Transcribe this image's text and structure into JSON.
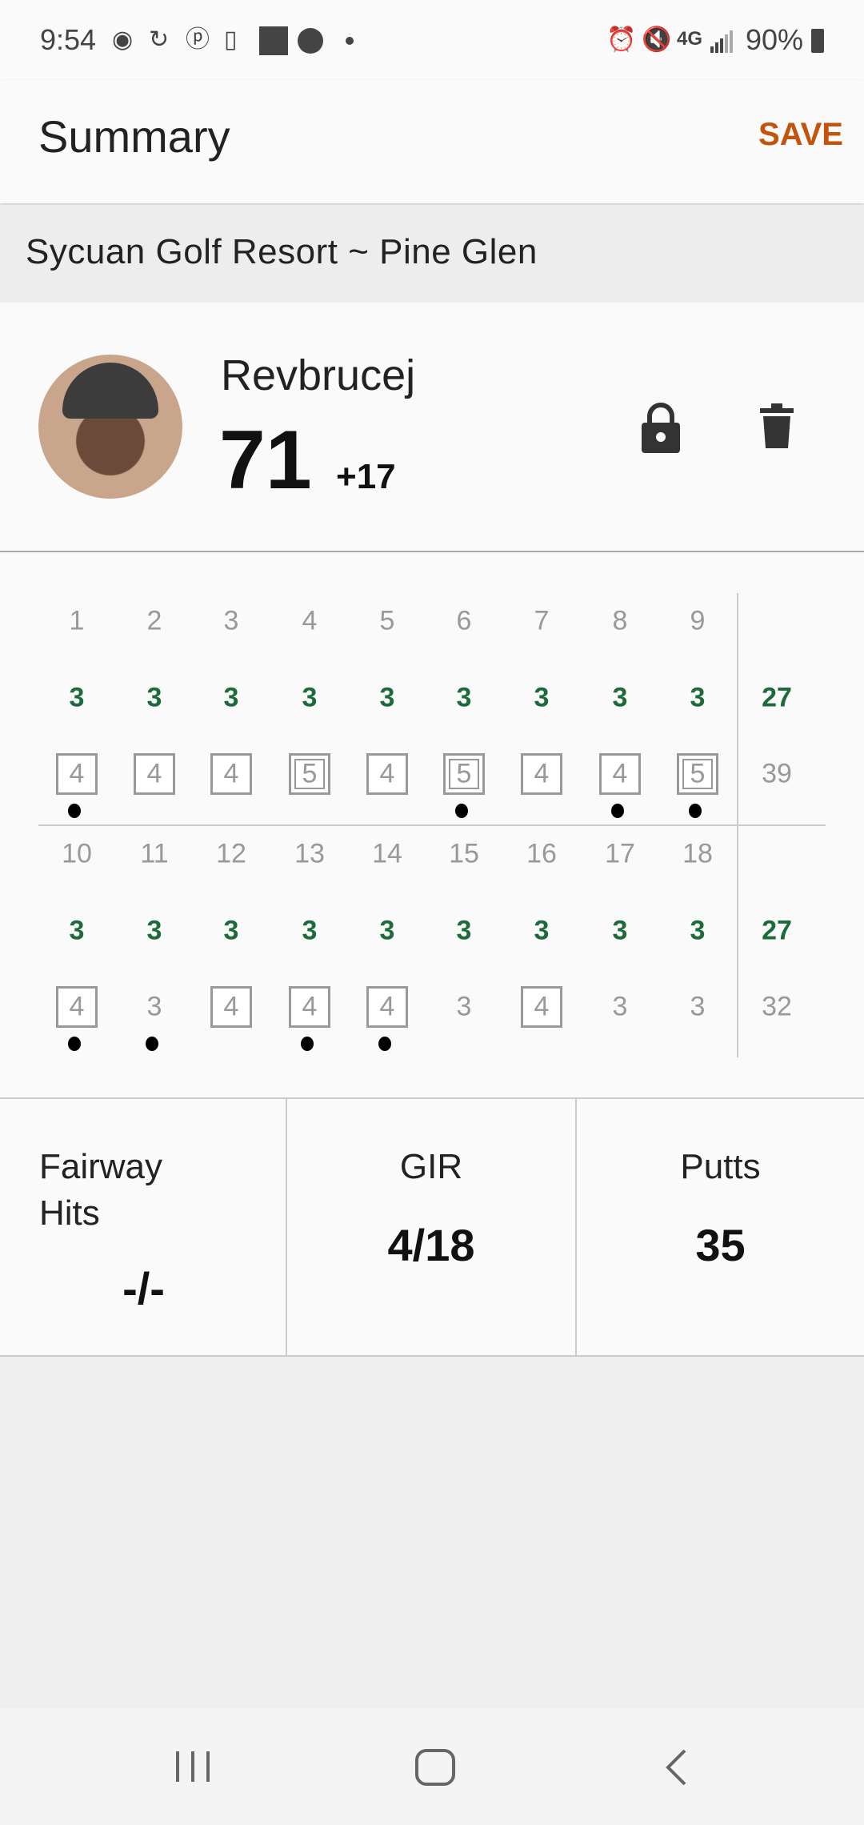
{
  "status_bar": {
    "time": "9:54",
    "battery": "90%",
    "network": "4G",
    "left_icons": [
      "iheartradio-icon",
      "sync-icon",
      "pinterest-icon",
      "id-phone-icon",
      "charles-schwab-icon",
      "account-icon",
      "dot-icon"
    ],
    "right_icons": [
      "alarm-icon",
      "mute-icon",
      "4g-icon",
      "signal-icon",
      "battery-icon"
    ]
  },
  "appbar": {
    "title": "Summary",
    "save_label": "SAVE",
    "save_color": "#c4530e"
  },
  "course": "Sycuan Golf Resort ~ Pine Glen",
  "player": {
    "name": "Revbrucej",
    "score": "71",
    "to_par": "+17"
  },
  "colors": {
    "par": "#1d6b3a",
    "muted": "#999999"
  },
  "scorecard": {
    "front": {
      "holes": [
        "1",
        "2",
        "3",
        "4",
        "5",
        "6",
        "7",
        "8",
        "9"
      ],
      "par": [
        "3",
        "3",
        "3",
        "3",
        "3",
        "3",
        "3",
        "3",
        "3"
      ],
      "par_total": "27",
      "scores": [
        "4",
        "4",
        "4",
        "5",
        "4",
        "5",
        "4",
        "4",
        "5"
      ],
      "score_total": "39",
      "marks": [
        "bogey",
        "bogey",
        "bogey",
        "double",
        "bogey",
        "double",
        "bogey",
        "bogey",
        "double"
      ],
      "dots": [
        true,
        false,
        false,
        false,
        false,
        true,
        false,
        true,
        true
      ]
    },
    "back": {
      "holes": [
        "10",
        "11",
        "12",
        "13",
        "14",
        "15",
        "16",
        "17",
        "18"
      ],
      "par": [
        "3",
        "3",
        "3",
        "3",
        "3",
        "3",
        "3",
        "3",
        "3"
      ],
      "par_total": "27",
      "scores": [
        "4",
        "3",
        "4",
        "4",
        "4",
        "3",
        "4",
        "3",
        "3"
      ],
      "score_total": "32",
      "marks": [
        "bogey",
        "none",
        "bogey",
        "bogey",
        "bogey",
        "none",
        "bogey",
        "none",
        "none"
      ],
      "dots": [
        true,
        true,
        false,
        true,
        true,
        false,
        false,
        false,
        false
      ]
    }
  },
  "stats": {
    "fairway": {
      "label1": "Fairway",
      "label2": "Hits",
      "value": "-/-"
    },
    "gir": {
      "label": "GIR",
      "value": "4/18"
    },
    "putts": {
      "label": "Putts",
      "value": "35"
    }
  }
}
